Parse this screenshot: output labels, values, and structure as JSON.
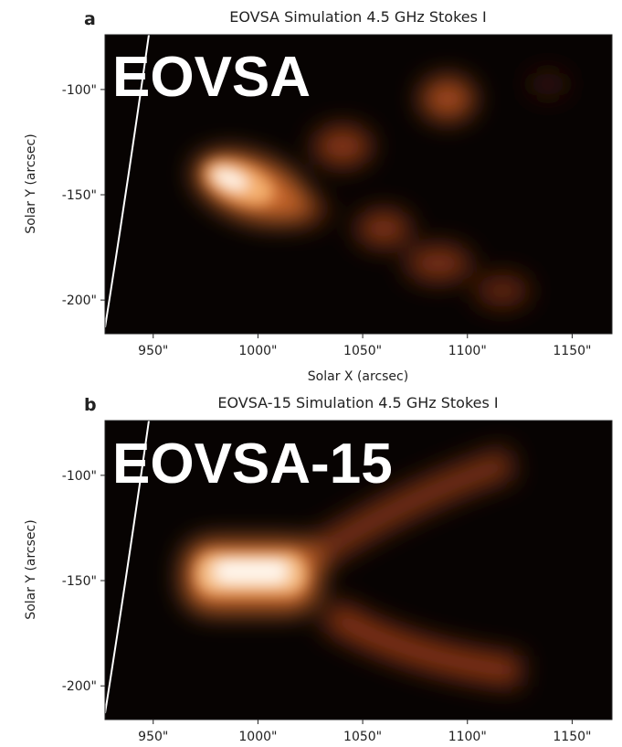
{
  "chart_data": [
    {
      "type": "image",
      "panel_label": "a",
      "title": "EOVSA Simulation 4.5 GHz Stokes I",
      "overlay_label": "EOVSA",
      "x_label": "Solar X (arcsec)",
      "y_label": "Solar Y (arcsec)",
      "xlim": [
        927,
        1169
      ],
      "ylim": [
        -216,
        -74
      ],
      "xticks": [
        {
          "value": 950,
          "label": "950\""
        },
        {
          "value": 1000,
          "label": "1000\""
        },
        {
          "value": 1050,
          "label": "1050\""
        },
        {
          "value": 1100,
          "label": "1100\""
        },
        {
          "value": 1150,
          "label": "1150\""
        }
      ],
      "yticks": [
        {
          "value": -100,
          "label": "-100\""
        },
        {
          "value": -150,
          "label": "-150\""
        },
        {
          "value": -200,
          "label": "-200\""
        }
      ]
    },
    {
      "type": "image",
      "panel_label": "b",
      "title": "EOVSA-15 Simulation 4.5 GHz Stokes I",
      "overlay_label": "EOVSA-15",
      "y_label": "Solar Y (arcsec)",
      "xlim": [
        927,
        1169
      ],
      "ylim": [
        -216,
        -74
      ],
      "xticks": [
        {
          "value": 950,
          "label": "950\""
        },
        {
          "value": 1000,
          "label": "1000\""
        },
        {
          "value": 1050,
          "label": "1050\""
        },
        {
          "value": 1100,
          "label": "1100\""
        },
        {
          "value": 1150,
          "label": "1150\""
        }
      ],
      "yticks": [
        {
          "value": -100,
          "label": "-100\""
        },
        {
          "value": -150,
          "label": "-150\""
        },
        {
          "value": -200,
          "label": "-200\""
        }
      ]
    }
  ]
}
